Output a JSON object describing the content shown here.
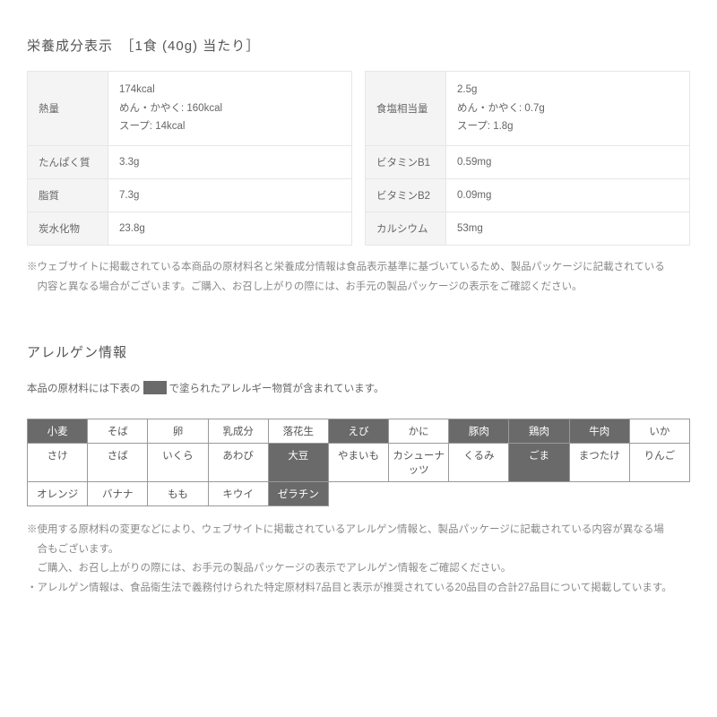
{
  "nutrition": {
    "title": "栄養成分表示　［1食 (40g) 当たり］",
    "left_rows": [
      {
        "label": "熱量",
        "lines": [
          "174kcal",
          "めん・かやく: 160kcal",
          "スープ: 14kcal"
        ]
      },
      {
        "label": "たんぱく質",
        "lines": [
          "3.3g"
        ]
      },
      {
        "label": "脂質",
        "lines": [
          "7.3g"
        ]
      },
      {
        "label": "炭水化物",
        "lines": [
          "23.8g"
        ]
      }
    ],
    "right_rows": [
      {
        "label": "食塩相当量",
        "lines": [
          "2.5g",
          "めん・かやく: 0.7g",
          "スープ: 1.8g"
        ]
      },
      {
        "label": "ビタミンB1",
        "lines": [
          "0.59mg"
        ]
      },
      {
        "label": "ビタミンB2",
        "lines": [
          "0.09mg"
        ]
      },
      {
        "label": "カルシウム",
        "lines": [
          "53mg"
        ]
      }
    ],
    "note": "※ウェブサイトに掲載されている本商品の原材料名と栄養成分情報は食品表示基準に基づいているため、製品パッケージに記載されている\n　内容と異なる場合がございます。ご購入、お召し上がりの際には、お手元の製品パッケージの表示をご確認ください。"
  },
  "allergen": {
    "title": "アレルゲン情報",
    "intro_prefix": "本品の原材料には下表の",
    "intro_suffix": "で塗られたアレルギー物質が含まれています。",
    "items": [
      {
        "name": "小麦",
        "active": true
      },
      {
        "name": "そば",
        "active": false
      },
      {
        "name": "卵",
        "active": false
      },
      {
        "name": "乳成分",
        "active": false
      },
      {
        "name": "落花生",
        "active": false
      },
      {
        "name": "えび",
        "active": true
      },
      {
        "name": "かに",
        "active": false
      },
      {
        "name": "豚肉",
        "active": true
      },
      {
        "name": "鶏肉",
        "active": true
      },
      {
        "name": "牛肉",
        "active": true
      },
      {
        "name": "いか",
        "active": false
      },
      {
        "name": "さけ",
        "active": false
      },
      {
        "name": "さば",
        "active": false
      },
      {
        "name": "いくら",
        "active": false
      },
      {
        "name": "あわび",
        "active": false
      },
      {
        "name": "大豆",
        "active": true
      },
      {
        "name": "やまいも",
        "active": false
      },
      {
        "name": "カシューナッツ",
        "active": false
      },
      {
        "name": "くるみ",
        "active": false
      },
      {
        "name": "ごま",
        "active": true
      },
      {
        "name": "まつたけ",
        "active": false
      },
      {
        "name": "りんご",
        "active": false
      },
      {
        "name": "オレンジ",
        "active": false
      },
      {
        "name": "バナナ",
        "active": false
      },
      {
        "name": "もも",
        "active": false
      },
      {
        "name": "キウイ",
        "active": false
      },
      {
        "name": "ゼラチン",
        "active": true
      }
    ],
    "grid_cols": 11,
    "grid_rows": 3,
    "notes": "※使用する原材料の変更などにより、ウェブサイトに掲載されているアレルゲン情報と、製品パッケージに記載されている内容が異なる場\n　合もございます。\n　ご購入、お召し上がりの際には、お手元の製品パッケージの表示でアレルゲン情報をご確認ください。\n・アレルゲン情報は、食品衛生法で義務付けられた特定原材料7品目と表示が推奨されている20品目の合計27品目について掲載しています。"
  },
  "colors": {
    "cell_bg": "#f4f4f4",
    "border": "#e6e6e6",
    "active_bg": "#6a6a6a",
    "text": "#555555",
    "note_text": "#888888"
  }
}
